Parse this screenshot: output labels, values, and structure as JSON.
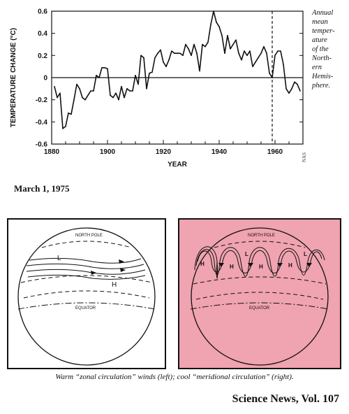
{
  "chart_data": {
    "type": "line",
    "xlabel": "YEAR",
    "ylabel": "TEMPERATURE CHANGE (°C)",
    "xlim": [
      1880,
      1970
    ],
    "ylim": [
      -0.6,
      0.6
    ],
    "x_ticks": [
      "1880",
      "1900",
      "1920",
      "1940",
      "1960"
    ],
    "y_ticks": [
      "0.6",
      "0.4",
      "0.2",
      "0",
      "-0.2",
      "-0.4",
      "-0.6"
    ],
    "reference_year": 1959,
    "series": [
      {
        "x": [
          1881,
          1882,
          1883,
          1884,
          1885,
          1886,
          1887,
          1888,
          1889,
          1890,
          1891,
          1892,
          1893,
          1894,
          1895,
          1896,
          1897,
          1898,
          1899,
          1900,
          1901,
          1902,
          1903,
          1904,
          1905,
          1906,
          1907,
          1908,
          1909,
          1910,
          1911,
          1912,
          1913,
          1914,
          1915,
          1916,
          1917,
          1918,
          1919,
          1920,
          1921,
          1922,
          1923,
          1924,
          1925,
          1926,
          1927,
          1928,
          1929,
          1930,
          1931,
          1932,
          1933,
          1934,
          1935,
          1936,
          1937,
          1938,
          1939,
          1940,
          1941,
          1942,
          1943,
          1944,
          1945,
          1946,
          1947,
          1948,
          1949,
          1950,
          1951,
          1952,
          1953,
          1954,
          1955,
          1956,
          1957,
          1958,
          1959,
          1960,
          1961,
          1962,
          1963,
          1964,
          1965,
          1966,
          1967,
          1968,
          1969
        ],
        "values": [
          -0.08,
          -0.18,
          -0.14,
          -0.46,
          -0.44,
          -0.32,
          -0.33,
          -0.2,
          -0.06,
          -0.1,
          -0.18,
          -0.2,
          -0.16,
          -0.12,
          -0.12,
          0.02,
          0.0,
          0.09,
          0.09,
          0.08,
          -0.16,
          -0.18,
          -0.14,
          -0.2,
          -0.08,
          -0.18,
          -0.1,
          -0.12,
          -0.12,
          0.02,
          -0.06,
          0.2,
          0.18,
          -0.1,
          0.04,
          0.05,
          0.18,
          0.22,
          0.25,
          0.14,
          0.1,
          0.16,
          0.24,
          0.22,
          0.22,
          0.22,
          0.2,
          0.3,
          0.26,
          0.2,
          0.3,
          0.22,
          0.06,
          0.3,
          0.28,
          0.32,
          0.48,
          0.6,
          0.5,
          0.46,
          0.38,
          0.22,
          0.38,
          0.26,
          0.3,
          0.34,
          0.22,
          0.16,
          0.24,
          0.2,
          0.24,
          0.1,
          0.14,
          0.18,
          0.22,
          0.28,
          0.22,
          0.04,
          0.0,
          0.2,
          0.24,
          0.24,
          0.12,
          -0.1,
          -0.14,
          -0.1,
          -0.04,
          -0.06,
          -0.12
        ]
      }
    ]
  },
  "side_caption": {
    "lines": [
      "Annual",
      "mean",
      "temper-",
      "ature",
      "of the",
      "North-",
      "ern",
      "Hemis-",
      "phere."
    ]
  },
  "nas_tag": "NAS",
  "dateline": "March 1, 1975",
  "left_panel": {
    "pole_label": "NORTH POLE",
    "equator_label": "EQUATOR",
    "low_label": "L",
    "high_label": "H"
  },
  "right_panel": {
    "pole_label": "NORTH POLE",
    "equator_label": "EQUATOR",
    "high_label": "H",
    "low_label": "L",
    "background": "#f0a3b0"
  },
  "figure_caption": "Warm “zonal circulation” winds (left); cool “meridional circulation” (right).",
  "footer": "Science News, Vol. 107"
}
